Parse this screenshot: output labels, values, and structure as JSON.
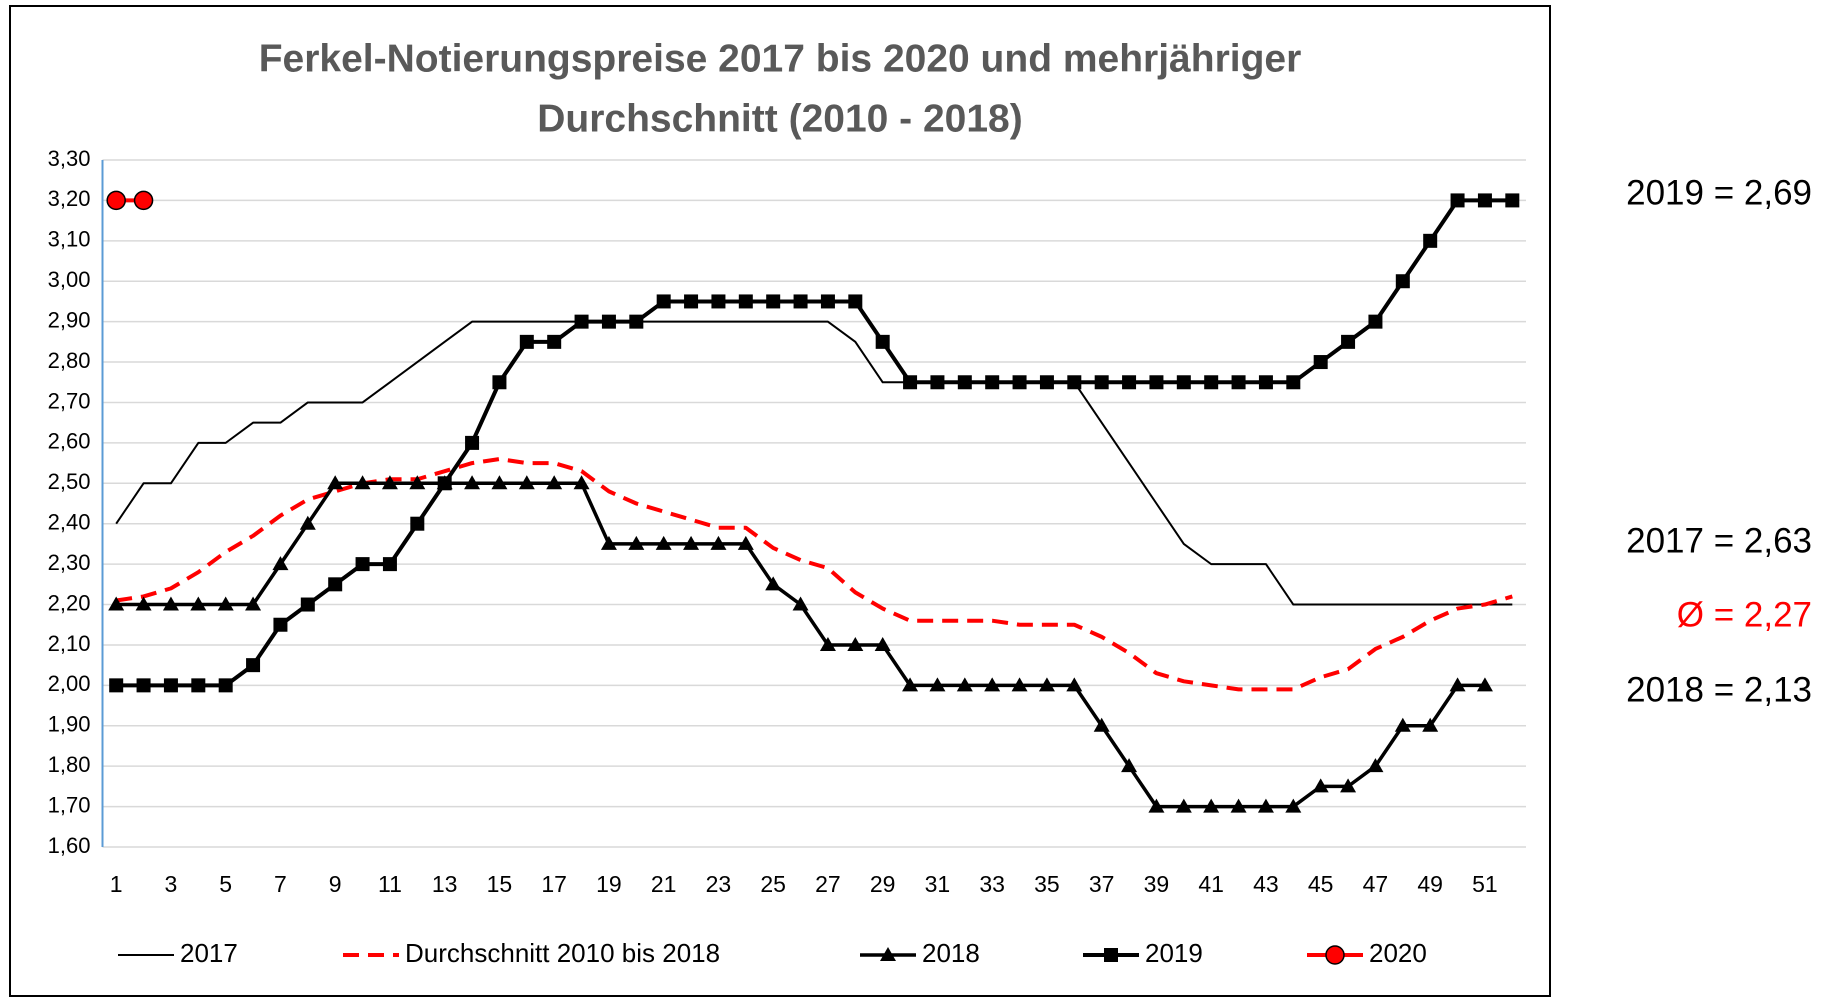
{
  "chart_data": {
    "type": "line",
    "title": "Ferkel-Notierungspreise 2017 bis 2020 und mehrjähriger",
    "subtitle": "Durchschnitt (2010 - 2018)",
    "categories": [
      "1",
      null,
      "3",
      null,
      "5",
      null,
      "7",
      null,
      "9",
      null,
      "11",
      null,
      "13",
      null,
      "15",
      null,
      "17",
      null,
      "19",
      null,
      "21",
      null,
      "23",
      null,
      "25",
      null,
      "27",
      null,
      "29",
      null,
      "31",
      null,
      "33",
      null,
      "35",
      null,
      "37",
      null,
      "39",
      null,
      "41",
      null,
      "43",
      null,
      "45",
      null,
      "47",
      null,
      "49",
      null,
      "51",
      null
    ],
    "ylim": [
      1.6,
      3.3
    ],
    "yticks": [
      {
        "value": 1.6,
        "label": "1,60"
      },
      {
        "value": 1.7,
        "label": "1,70"
      },
      {
        "value": 1.8,
        "label": "1,80"
      },
      {
        "value": 1.9,
        "label": "1,90"
      },
      {
        "value": 2.0,
        "label": "2,00"
      },
      {
        "value": 2.1,
        "label": "2,10"
      },
      {
        "value": 2.2,
        "label": "2,20"
      },
      {
        "value": 2.3,
        "label": "2,30"
      },
      {
        "value": 2.4,
        "label": "2,40"
      },
      {
        "value": 2.5,
        "label": "2,50"
      },
      {
        "value": 2.6,
        "label": "2,60"
      },
      {
        "value": 2.7,
        "label": "2,70"
      },
      {
        "value": 2.8,
        "label": "2,80"
      },
      {
        "value": 2.9,
        "label": "2,90"
      },
      {
        "value": 3.0,
        "label": "3,00"
      },
      {
        "value": 3.1,
        "label": "3,10"
      },
      {
        "value": 3.2,
        "label": "3,20"
      },
      {
        "value": 3.3,
        "label": "3,30"
      }
    ],
    "grid": true,
    "legend": "bottom",
    "series": [
      {
        "name": "2017",
        "color": "#000000",
        "linewidth": 2,
        "dash": false,
        "marker": null,
        "values": [
          2.4,
          2.5,
          2.5,
          2.6,
          2.6,
          2.65,
          2.65,
          2.7,
          2.7,
          2.7,
          2.75,
          2.8,
          2.85,
          2.9,
          2.9,
          2.9,
          2.9,
          2.9,
          2.9,
          2.9,
          2.9,
          2.9,
          2.9,
          2.9,
          2.9,
          2.9,
          2.9,
          2.85,
          2.75,
          2.75,
          2.75,
          2.75,
          2.75,
          2.75,
          2.75,
          2.75,
          2.65,
          2.55,
          2.45,
          2.35,
          2.3,
          2.3,
          2.3,
          2.2,
          2.2,
          2.2,
          2.2,
          2.2,
          2.2,
          2.2,
          2.2,
          2.2
        ]
      },
      {
        "name": "Durchschnitt 2010 bis 2018",
        "color": "#ff0000",
        "linewidth": 4,
        "dash": true,
        "marker": null,
        "values": [
          2.21,
          2.22,
          2.24,
          2.28,
          2.33,
          2.37,
          2.42,
          2.46,
          2.48,
          2.5,
          2.51,
          2.51,
          2.53,
          2.55,
          2.56,
          2.55,
          2.55,
          2.53,
          2.48,
          2.45,
          2.43,
          2.41,
          2.39,
          2.39,
          2.34,
          2.31,
          2.29,
          2.23,
          2.19,
          2.16,
          2.16,
          2.16,
          2.16,
          2.15,
          2.15,
          2.15,
          2.12,
          2.08,
          2.03,
          2.01,
          2.0,
          1.99,
          1.99,
          1.99,
          2.02,
          2.04,
          2.09,
          2.12,
          2.16,
          2.19,
          2.2,
          2.22
        ]
      },
      {
        "name": "2018",
        "color": "#000000",
        "linewidth": 3.5,
        "dash": false,
        "marker": "triangle",
        "values": [
          2.2,
          2.2,
          2.2,
          2.2,
          2.2,
          2.2,
          2.3,
          2.4,
          2.5,
          2.5,
          2.5,
          2.5,
          2.5,
          2.5,
          2.5,
          2.5,
          2.5,
          2.5,
          2.35,
          2.35,
          2.35,
          2.35,
          2.35,
          2.35,
          2.25,
          2.2,
          2.1,
          2.1,
          2.1,
          2.0,
          2.0,
          2.0,
          2.0,
          2.0,
          2.0,
          2.0,
          1.9,
          1.8,
          1.7,
          1.7,
          1.7,
          1.7,
          1.7,
          1.7,
          1.75,
          1.75,
          1.8,
          1.9,
          1.9,
          2.0,
          2.0,
          null
        ]
      },
      {
        "name": "2019",
        "color": "#000000",
        "linewidth": 4,
        "dash": false,
        "marker": "square",
        "values": [
          2.0,
          2.0,
          2.0,
          2.0,
          2.0,
          2.05,
          2.15,
          2.2,
          2.25,
          2.3,
          2.3,
          2.4,
          2.5,
          2.6,
          2.75,
          2.85,
          2.85,
          2.9,
          2.9,
          2.9,
          2.95,
          2.95,
          2.95,
          2.95,
          2.95,
          2.95,
          2.95,
          2.95,
          2.85,
          2.75,
          2.75,
          2.75,
          2.75,
          2.75,
          2.75,
          2.75,
          2.75,
          2.75,
          2.75,
          2.75,
          2.75,
          2.75,
          2.75,
          2.75,
          2.8,
          2.85,
          2.9,
          3.0,
          3.1,
          3.2,
          3.2,
          3.2
        ]
      },
      {
        "name": "2020",
        "color": "#ff0000",
        "linewidth": 4,
        "dash": false,
        "marker": "circle",
        "values": [
          3.2,
          3.2,
          null,
          null,
          null,
          null,
          null,
          null,
          null,
          null,
          null,
          null,
          null,
          null,
          null,
          null,
          null,
          null,
          null,
          null,
          null,
          null,
          null,
          null,
          null,
          null,
          null,
          null,
          null,
          null,
          null,
          null,
          null,
          null,
          null,
          null,
          null,
          null,
          null,
          null,
          null,
          null,
          null,
          null,
          null,
          null,
          null,
          null,
          null,
          null,
          null,
          null
        ]
      }
    ],
    "annotations": [
      {
        "text": "2019 = 2,69",
        "color": "#000000"
      },
      {
        "text": "2017 = 2,63",
        "color": "#000000"
      },
      {
        "text": "Ø = 2,27",
        "color": "#ff0000"
      },
      {
        "text": "2018 = 2,13",
        "color": "#000000"
      }
    ]
  }
}
